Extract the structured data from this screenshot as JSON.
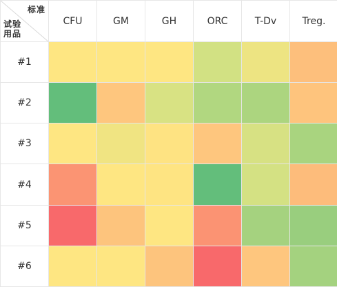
{
  "corner": {
    "column_header_label": "标准",
    "row_header_label": "试验用品"
  },
  "chart_data": {
    "type": "heatmap",
    "columns": [
      "CFU",
      "GM",
      "GH",
      "ORC",
      "T-Dv",
      "Treg."
    ],
    "rows": [
      "#1",
      "#2",
      "#3",
      "#4",
      "#5",
      "#6"
    ],
    "cell_colors": [
      [
        "#FEE682",
        "#FEE682",
        "#FEE682",
        "#D2E183",
        "#EDE482",
        "#FDBF7C"
      ],
      [
        "#63BE7B",
        "#FEC67E",
        "#D8E283",
        "#B1D780",
        "#ACD57F",
        "#FEC47D"
      ],
      [
        "#FEE682",
        "#F0E482",
        "#FEE382",
        "#FEC67E",
        "#D7E183",
        "#A9D47F"
      ],
      [
        "#FB9473",
        "#FEE682",
        "#FEE482",
        "#63BE7B",
        "#D4E183",
        "#FDBC7B"
      ],
      [
        "#F8696B",
        "#FDC47D",
        "#FEE682",
        "#FB9373",
        "#A5D27F",
        "#99CE7E"
      ],
      [
        "#FEE682",
        "#FEE682",
        "#FDC47D",
        "#F8696B",
        "#FEC67E",
        "#A4D27F"
      ]
    ]
  }
}
